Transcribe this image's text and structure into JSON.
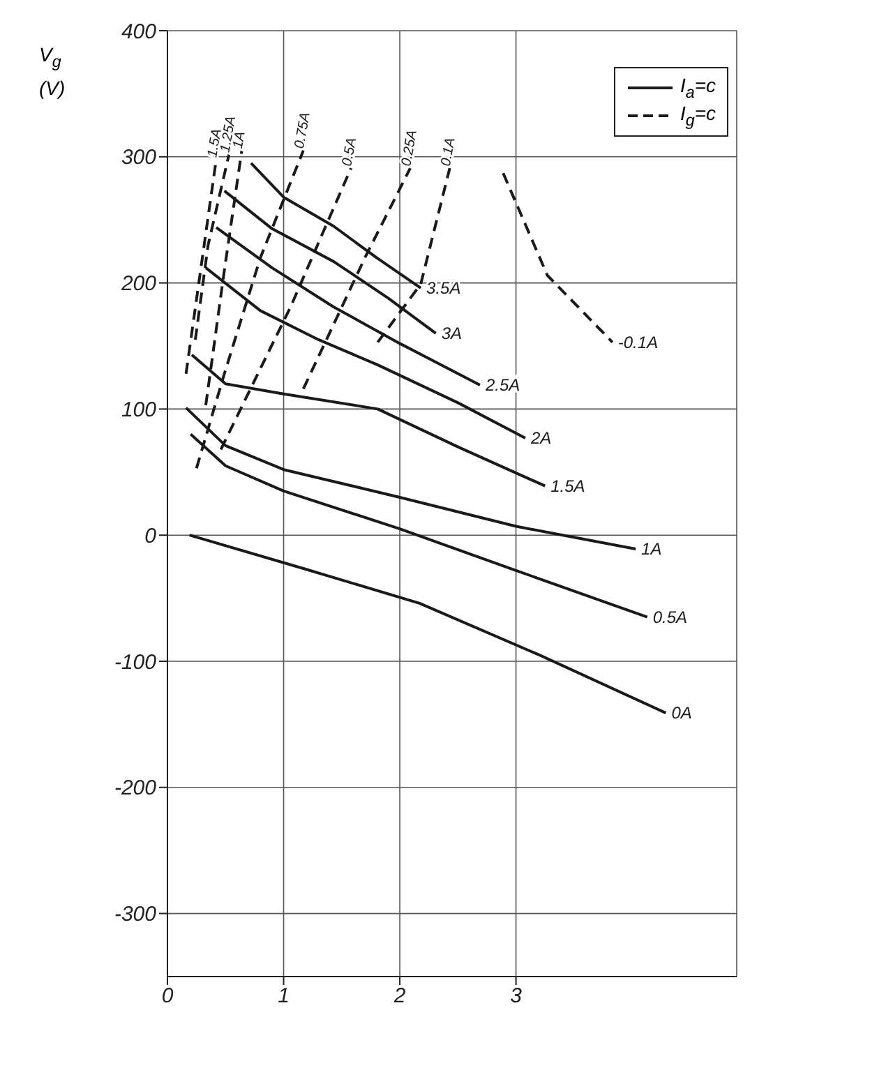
{
  "chart_data": {
    "type": "line",
    "ylabel": "V$_{g}$ (V)",
    "xlim": [
      0,
      4.9
    ],
    "xticks": [
      0,
      1,
      2,
      3
    ],
    "ylim": [
      -350,
      400
    ],
    "yticks": [
      400,
      300,
      200,
      100,
      0,
      -100,
      -200,
      -300
    ],
    "grid": true,
    "marker": "none",
    "annotations": [
      "I$_{a}$=c",
      "I$_{g}$=c"
    ],
    "series": [
      {
        "name": "3.5A",
        "color": "#1a1a1a",
        "line_style": "solid",
        "x": [
          0.72,
          1.0,
          1.43,
          1.8,
          2.18
        ],
        "values": [
          295,
          268,
          245,
          220,
          196
        ]
      },
      {
        "name": "3A",
        "color": "#1a1a1a",
        "line_style": "solid",
        "x": [
          0.49,
          0.9,
          1.43,
          1.9,
          2.31
        ],
        "values": [
          273,
          243,
          217,
          188,
          160
        ]
      },
      {
        "name": "2.5A",
        "color": "#1a1a1a",
        "line_style": "solid",
        "x": [
          0.42,
          0.9,
          1.43,
          2.0,
          2.69
        ],
        "values": [
          244,
          212,
          181,
          152,
          119
        ]
      },
      {
        "name": "2A",
        "color": "#1a1a1a",
        "line_style": "solid",
        "x": [
          0.33,
          0.8,
          1.3,
          1.81,
          2.5,
          3.08
        ],
        "values": [
          212,
          178,
          155,
          135,
          105,
          77
        ]
      },
      {
        "name": "1.5A",
        "color": "#1a1a1a",
        "line_style": "solid",
        "x": [
          0.21,
          0.5,
          1.0,
          1.81,
          2.5,
          3.25
        ],
        "values": [
          143,
          120,
          112,
          100,
          70,
          39
        ]
      },
      {
        "name": "1A",
        "color": "#1a1a1a",
        "line_style": "solid",
        "x": [
          0.16,
          0.5,
          1.0,
          2.0,
          3.0,
          4.03
        ],
        "values": [
          101,
          71,
          52,
          30,
          7,
          -11
        ]
      },
      {
        "name": "0.5A",
        "color": "#1a1a1a",
        "line_style": "solid",
        "x": [
          0.2,
          0.5,
          1.0,
          2.0,
          3.0,
          4.13
        ],
        "values": [
          80,
          55,
          35,
          5,
          -28,
          -65
        ]
      },
      {
        "name": "0A",
        "color": "#1a1a1a",
        "line_style": "solid",
        "x": [
          0.19,
          1.19,
          2.17,
          3.2,
          4.29
        ],
        "values": [
          0,
          -27,
          -54,
          -95,
          -141
        ]
      },
      {
        "name": "1.5A",
        "color": "#1a1a1a",
        "line_style": "dashed",
        "x": [
          0.16,
          0.29,
          0.42
        ],
        "values": [
          128,
          213,
          298
        ]
      },
      {
        "name": "1.25A",
        "color": "#1a1a1a",
        "line_style": "dashed",
        "x": [
          0.24,
          0.35,
          0.53
        ],
        "values": [
          155,
          230,
          302
        ]
      },
      {
        "name": "1A",
        "color": "#1a1a1a",
        "line_style": "dashed",
        "x": [
          0.33,
          0.49,
          0.64
        ],
        "values": [
          103,
          210,
          305
        ]
      },
      {
        "name": "0.75A",
        "color": "#1a1a1a",
        "line_style": "dashed",
        "x": [
          0.25,
          0.49,
          0.8,
          1.17
        ],
        "values": [
          53,
          128,
          220,
          305
        ]
      },
      {
        "name": "0.5A",
        "color": "#1a1a1a",
        "line_style": "dashed",
        "x": [
          0.46,
          1.06,
          1.58
        ],
        "values": [
          68,
          181,
          291
        ]
      },
      {
        "name": "0.25A",
        "color": "#1a1a1a",
        "line_style": "dashed",
        "x": [
          1.17,
          1.7,
          2.09
        ],
        "values": [
          116,
          220,
          291
        ]
      },
      {
        "name": "0.1A",
        "color": "#1a1a1a",
        "line_style": "dashed",
        "x": [
          1.81,
          2.18,
          2.43
        ],
        "values": [
          153,
          199,
          291
        ]
      },
      {
        "name": "-0.1A",
        "color": "#1a1a1a",
        "line_style": "dashed",
        "x": [
          2.89,
          3.27,
          3.83
        ],
        "values": [
          287,
          206,
          153
        ]
      }
    ]
  }
}
